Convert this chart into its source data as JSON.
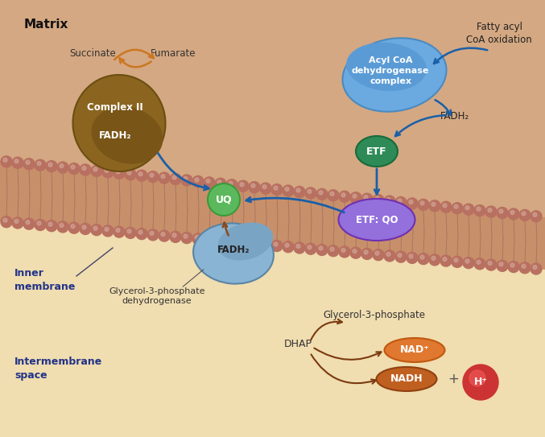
{
  "title_matrix": "Matrix",
  "title_inner_membrane": "Inner\nmembrane",
  "title_intermembrane": "Intermembrane\nspace",
  "complex2_color": "#8B6520",
  "complex2_label": "Complex II",
  "fadh2_label": "FADH₂",
  "succinate_label": "Succinate",
  "fumarate_label": "Fumarate",
  "uq_color": "#5cb85c",
  "uq_label": "UQ",
  "etf_color": "#2e8b57",
  "etf_label": "ETF",
  "etfqo_color": "#9370db",
  "etfqo_label": "ETF: QO",
  "acyl_color": "#5b9bd5",
  "acyl_label": "Acyl CoA\ndehydrogenase\ncomplex",
  "fatty_acid_label": "Fatty acyl\nCoA oxidation",
  "glycerol_dh_color": "#8ab4d4",
  "glycerol_fadh2_label": "FADH₂",
  "glycerol_enzyme_label": "Glycerol-3-phosphate\ndehydrogenase",
  "glycerol3p_label": "Glycerol-3-phosphate",
  "dhap_label": "DHAP",
  "nad_color": "#e07830",
  "nad_label": "NAD⁺",
  "nadh_color": "#c06020",
  "nadh_label": "NADH",
  "hplus_color": "#cc2222",
  "hplus_label": "H⁺",
  "arrow_blue": "#1a5fa8",
  "arrow_brown": "#7a3a10",
  "bead_color": "#b87060",
  "bead_highlight": "#d4a898",
  "membrane_fill": "#c8906a",
  "matrix_bg": "#d4a882",
  "interspace_bg": "#f0ddb0",
  "overall_bg": "#e8c8a0"
}
